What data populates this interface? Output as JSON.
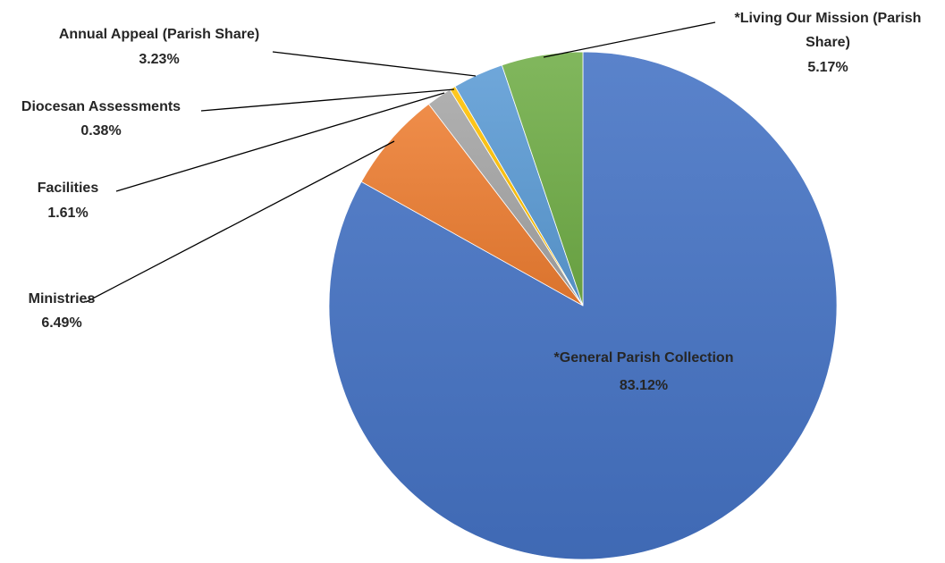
{
  "chart_data": {
    "type": "pie",
    "start_angle_deg": 0,
    "direction": "clockwise",
    "slices": [
      {
        "label": "*General Parish Collection",
        "value": 83.12,
        "value_label": "83.12%",
        "color": "#4472C4"
      },
      {
        "label": "Ministries",
        "value": 6.49,
        "value_label": "6.49%",
        "color": "#ED7D31"
      },
      {
        "label": "Facilities",
        "value": 1.61,
        "value_label": "1.61%",
        "color": "#A5A5A5"
      },
      {
        "label": "Diocesan Assessments",
        "value": 0.38,
        "value_label": "0.38%",
        "color": "#FFC000"
      },
      {
        "label": "Annual Appeal (Parish Share)",
        "value": 3.23,
        "value_label": "3.23%",
        "color": "#5B9BD5"
      },
      {
        "label": "*Living Our Mission (Parish Share)",
        "value": 5.17,
        "value_label": "5.17%",
        "color": "#70AD47"
      }
    ]
  }
}
